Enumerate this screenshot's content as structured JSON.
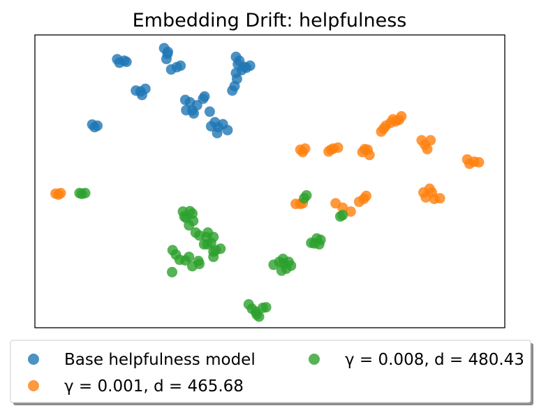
{
  "chart_data": {
    "type": "scatter",
    "title": "Embedding Drift: helpfulness",
    "xlabel": "",
    "ylabel": "",
    "xlim": [
      0,
      1
    ],
    "ylim": [
      0,
      1
    ],
    "axis_ticks": "none",
    "grid": false,
    "legend_placement": "bottom, outside plot, two columns",
    "series": [
      {
        "name": "Base helpfulness model",
        "color": "#1f77b4",
        "points": [
          [
            0.175,
            0.917
          ],
          [
            0.18,
            0.905
          ],
          [
            0.19,
            0.912
          ],
          [
            0.195,
            0.908
          ],
          [
            0.215,
            0.81
          ],
          [
            0.225,
            0.807
          ],
          [
            0.228,
            0.795
          ],
          [
            0.235,
            0.816
          ],
          [
            0.275,
            0.955
          ],
          [
            0.28,
            0.918
          ],
          [
            0.282,
            0.935
          ],
          [
            0.283,
            0.942
          ],
          [
            0.29,
            0.882
          ],
          [
            0.302,
            0.89
          ],
          [
            0.31,
            0.895
          ],
          [
            0.32,
            0.778
          ],
          [
            0.322,
            0.743
          ],
          [
            0.33,
            0.77
          ],
          [
            0.335,
            0.742
          ],
          [
            0.338,
            0.732
          ],
          [
            0.345,
            0.76
          ],
          [
            0.358,
            0.782
          ],
          [
            0.361,
            0.79
          ],
          [
            0.372,
            0.738
          ],
          [
            0.375,
            0.688
          ],
          [
            0.383,
            0.702
          ],
          [
            0.388,
            0.665
          ],
          [
            0.39,
            0.685
          ],
          [
            0.4,
            0.695
          ],
          [
            0.41,
            0.675
          ],
          [
            0.42,
            0.81
          ],
          [
            0.425,
            0.825
          ],
          [
            0.428,
            0.87
          ],
          [
            0.428,
            0.925
          ],
          [
            0.43,
            0.85
          ],
          [
            0.432,
            0.9
          ],
          [
            0.435,
            0.912
          ],
          [
            0.44,
            0.88
          ],
          [
            0.445,
            0.891
          ],
          [
            0.45,
            0.888
          ],
          [
            0.458,
            0.895
          ],
          [
            0.122,
            0.694
          ],
          [
            0.127,
            0.685
          ],
          [
            0.133,
            0.69
          ]
        ]
      },
      {
        "name": "γ = 0.001, d = 465.68",
        "color": "#ff7f0e",
        "points": [
          [
            0.044,
            0.458
          ],
          [
            0.05,
            0.455
          ],
          [
            0.055,
            0.46
          ],
          [
            0.565,
            0.608
          ],
          [
            0.57,
            0.6
          ],
          [
            0.575,
            0.612
          ],
          [
            0.625,
            0.602
          ],
          [
            0.63,
            0.608
          ],
          [
            0.635,
            0.612
          ],
          [
            0.645,
            0.615
          ],
          [
            0.697,
            0.6
          ],
          [
            0.702,
            0.61
          ],
          [
            0.708,
            0.608
          ],
          [
            0.712,
            0.59
          ],
          [
            0.737,
            0.67
          ],
          [
            0.742,
            0.68
          ],
          [
            0.747,
            0.69
          ],
          [
            0.757,
            0.7
          ],
          [
            0.762,
            0.712
          ],
          [
            0.768,
            0.705
          ],
          [
            0.775,
            0.71
          ],
          [
            0.78,
            0.722
          ],
          [
            0.823,
            0.64
          ],
          [
            0.83,
            0.625
          ],
          [
            0.835,
            0.61
          ],
          [
            0.842,
            0.64
          ],
          [
            0.827,
            0.462
          ],
          [
            0.832,
            0.445
          ],
          [
            0.84,
            0.475
          ],
          [
            0.845,
            0.462
          ],
          [
            0.85,
            0.44
          ],
          [
            0.862,
            0.442
          ],
          [
            0.64,
            0.425
          ],
          [
            0.655,
            0.41
          ],
          [
            0.672,
            0.397
          ],
          [
            0.69,
            0.43
          ],
          [
            0.705,
            0.45
          ],
          [
            0.7,
            0.44
          ],
          [
            0.92,
            0.575
          ],
          [
            0.925,
            0.56
          ],
          [
            0.935,
            0.567
          ],
          [
            0.945,
            0.565
          ],
          [
            0.555,
            0.423
          ],
          [
            0.565,
            0.423
          ],
          [
            0.57,
            0.425
          ]
        ]
      },
      {
        "name": "γ = 0.008, d = 480.43",
        "color": "#2ca02c",
        "points": [
          [
            0.095,
            0.46
          ],
          [
            0.1,
            0.457
          ],
          [
            0.107,
            0.46
          ],
          [
            0.315,
            0.397
          ],
          [
            0.318,
            0.38
          ],
          [
            0.322,
            0.375
          ],
          [
            0.328,
            0.35
          ],
          [
            0.33,
            0.398
          ],
          [
            0.335,
            0.39
          ],
          [
            0.337,
            0.365
          ],
          [
            0.342,
            0.325
          ],
          [
            0.35,
            0.315
          ],
          [
            0.36,
            0.285
          ],
          [
            0.365,
            0.31
          ],
          [
            0.367,
            0.285
          ],
          [
            0.368,
            0.325
          ],
          [
            0.375,
            0.29
          ],
          [
            0.38,
            0.31
          ],
          [
            0.292,
            0.19
          ],
          [
            0.293,
            0.265
          ],
          [
            0.3,
            0.25
          ],
          [
            0.308,
            0.232
          ],
          [
            0.32,
            0.23
          ],
          [
            0.328,
            0.242
          ],
          [
            0.335,
            0.21
          ],
          [
            0.348,
            0.228
          ],
          [
            0.35,
            0.218
          ],
          [
            0.38,
            0.242
          ],
          [
            0.38,
            0.26
          ],
          [
            0.385,
            0.265
          ],
          [
            0.395,
            0.27
          ],
          [
            0.455,
            0.08
          ],
          [
            0.462,
            0.065
          ],
          [
            0.47,
            0.055
          ],
          [
            0.472,
            0.045
          ],
          [
            0.477,
            0.038
          ],
          [
            0.485,
            0.068
          ],
          [
            0.492,
            0.07
          ],
          [
            0.508,
            0.215
          ],
          [
            0.52,
            0.225
          ],
          [
            0.525,
            0.195
          ],
          [
            0.528,
            0.235
          ],
          [
            0.53,
            0.22
          ],
          [
            0.535,
            0.202
          ],
          [
            0.54,
            0.225
          ],
          [
            0.545,
            0.212
          ],
          [
            0.588,
            0.29
          ],
          [
            0.595,
            0.288
          ],
          [
            0.6,
            0.305
          ],
          [
            0.605,
            0.285
          ],
          [
            0.608,
            0.3
          ],
          [
            0.573,
            0.442
          ],
          [
            0.578,
            0.452
          ],
          [
            0.65,
            0.38
          ],
          [
            0.655,
            0.385
          ]
        ]
      }
    ]
  }
}
